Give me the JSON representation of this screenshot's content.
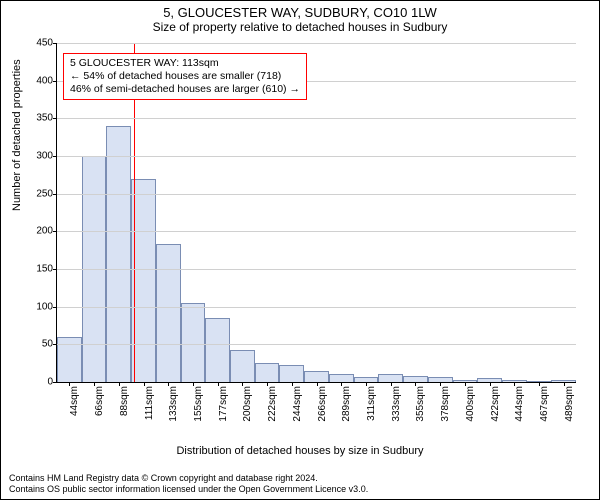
{
  "title": "5, GLOUCESTER WAY, SUDBURY, CO10 1LW",
  "subtitle": "Size of property relative to detached houses in Sudbury",
  "y_axis": {
    "label": "Number of detached properties",
    "min": 0,
    "max": 450,
    "tick_step": 50,
    "label_fontsize": 11,
    "tick_fontsize": 10
  },
  "x_axis": {
    "label": "Distribution of detached houses by size in Sudbury",
    "tick_labels": [
      "44sqm",
      "66sqm",
      "88sqm",
      "111sqm",
      "133sqm",
      "155sqm",
      "177sqm",
      "200sqm",
      "222sqm",
      "244sqm",
      "266sqm",
      "289sqm",
      "311sqm",
      "333sqm",
      "355sqm",
      "378sqm",
      "400sqm",
      "422sqm",
      "444sqm",
      "467sqm",
      "489sqm"
    ],
    "label_fontsize": 11,
    "tick_fontsize": 10
  },
  "histogram": {
    "type": "histogram",
    "values": [
      60,
      300,
      340,
      270,
      183,
      105,
      85,
      42,
      25,
      22,
      14,
      10,
      7,
      10,
      8,
      7,
      3,
      5,
      3,
      2,
      3
    ],
    "bar_fill": "#d9e2f3",
    "bar_stroke": "#7a8db3",
    "bar_stroke_width": 1
  },
  "marker": {
    "position_index": 3.1,
    "color": "#ff0000",
    "width": 1
  },
  "annotation": {
    "line1": "5 GLOUCESTER WAY: 113sqm",
    "line2": "← 54% of detached houses are smaller (718)",
    "line3": "46% of semi-detached houses are larger (610) →",
    "border_color": "#ff0000",
    "background": "#ffffff",
    "fontsize": 10.5
  },
  "grid": {
    "color": "#d0d0d0"
  },
  "footer": {
    "line1": "Contains HM Land Registry data © Crown copyright and database right 2024.",
    "line2": "Contains OS public sector information licensed under the Open Government Licence v3.0.",
    "fontsize": 9,
    "color": "#000000"
  },
  "colors": {
    "background": "#ffffff",
    "text": "#000000",
    "axis": "#000000",
    "border": "#000000"
  }
}
